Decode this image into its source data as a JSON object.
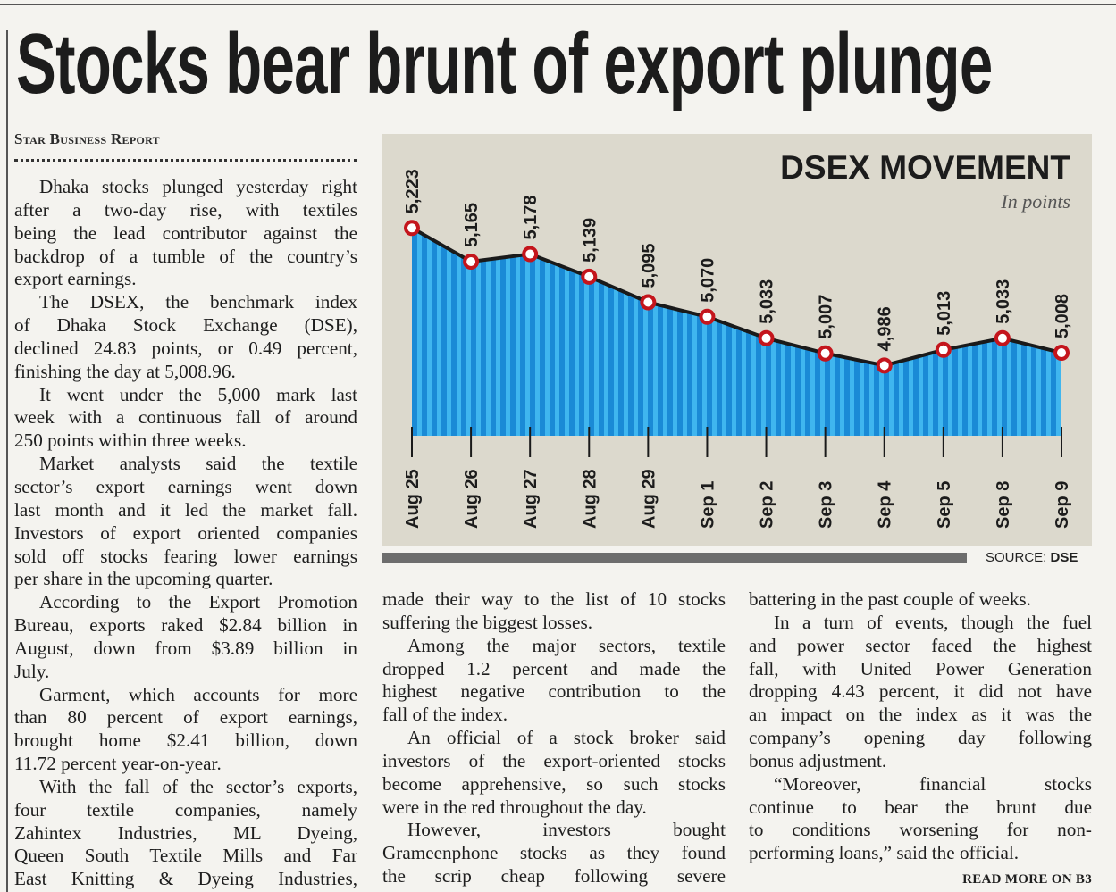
{
  "headline": "Stocks bear brunt of export plunge",
  "byline": "Star Business Report",
  "columns": [
    [
      {
        "lines": [
          "Dhaka stocks plunged yesterday right",
          "after a two-day rise, with textiles",
          "being the lead contributor against the",
          "backdrop of a tumble of the country’s",
          "export earnings."
        ]
      },
      {
        "lines": [
          "The DSEX, the benchmark index",
          "of Dhaka Stock Exchange (DSE),",
          "declined 24.83 points, or 0.49 percent,",
          "finishing the day at 5,008.96."
        ]
      },
      {
        "lines": [
          "It went under the 5,000 mark last",
          "week with a continuous fall of around",
          "250 points within three weeks."
        ]
      },
      {
        "lines": [
          "Market analysts said the textile",
          "sector’s export earnings went down",
          "last month and it led the market fall.",
          "Investors of export oriented companies",
          "sold off stocks fearing lower earnings",
          "per share in the upcoming quarter."
        ]
      },
      {
        "lines": [
          "According to the Export Promotion",
          "Bureau, exports raked $2.84 billion in",
          "August, down from $3.89 billion in",
          "July."
        ]
      },
      {
        "lines": [
          "Garment, which accounts for more",
          "than 80 percent of export earnings,",
          "brought home $2.41 billion, down",
          "11.72 percent year-on-year."
        ]
      },
      {
        "lines": [
          "With the fall of the sector’s exports,",
          "four textile companies, namely",
          "Zahintex Industries, ML Dyeing,",
          "Queen South Textile Mills and Far",
          "East Knitting & Dyeing Industries,"
        ],
        "continues": true
      }
    ],
    [
      {
        "lines": [
          "made their way to the list of 10 stocks",
          "suffering the biggest losses."
        ],
        "continued": true
      },
      {
        "lines": [
          "Among the major sectors, textile",
          "dropped 1.2 percent and made the",
          "highest negative contribution to the",
          "fall of the index."
        ]
      },
      {
        "lines": [
          "An official of a stock broker said",
          "investors of the export-oriented stocks",
          "become apprehensive, so such stocks",
          "were in the red throughout the day."
        ]
      },
      {
        "lines": [
          "However, investors bought",
          "Grameenphone stocks as they found",
          "the scrip cheap following severe"
        ],
        "continues": true
      }
    ],
    [
      {
        "lines": [
          "battering in the past couple of weeks."
        ],
        "continued": true
      },
      {
        "lines": [
          "In a turn of events, though the fuel",
          "and power sector faced the highest",
          "fall, with United Power Generation",
          "dropping 4.43 percent, it did not have",
          "an impact on the index as it was the",
          "company’s opening day following",
          "bonus adjustment."
        ]
      },
      {
        "lines": [
          "“Moreover, financial stocks",
          "continue to bear the brunt due",
          "to conditions worsening for non-",
          "performing loans,” said the official."
        ]
      }
    ]
  ],
  "read_more": "READ MORE ON B3",
  "chart_data": {
    "type": "area",
    "title": "DSEX MOVEMENT",
    "subtitle": "In points",
    "categories": [
      "Aug 25",
      "Aug 26",
      "Aug 27",
      "Aug 28",
      "Aug 29",
      "Sep 1",
      "Sep 2",
      "Sep 3",
      "Sep 4",
      "Sep 5",
      "Sep 8",
      "Sep 9"
    ],
    "values": [
      5223,
      5165,
      5178,
      5139,
      5095,
      5070,
      5033,
      5007,
      4986,
      5013,
      5033,
      5008
    ],
    "value_labels": [
      "5,223",
      "5,165",
      "5,178",
      "5,139",
      "5,095",
      "5,070",
      "5,033",
      "5,007",
      "4,986",
      "5,013",
      "5,033",
      "5,008"
    ],
    "ylim": [
      4865,
      5260
    ],
    "grid": false,
    "source_label": "SOURCE:",
    "source_value": "DSE",
    "colors": {
      "background": "#dcd9cd",
      "fill_dark": "#1a8ad6",
      "fill_light": "#3fb6ef",
      "line": "#1a1a1a",
      "marker": "#c4151c"
    }
  }
}
